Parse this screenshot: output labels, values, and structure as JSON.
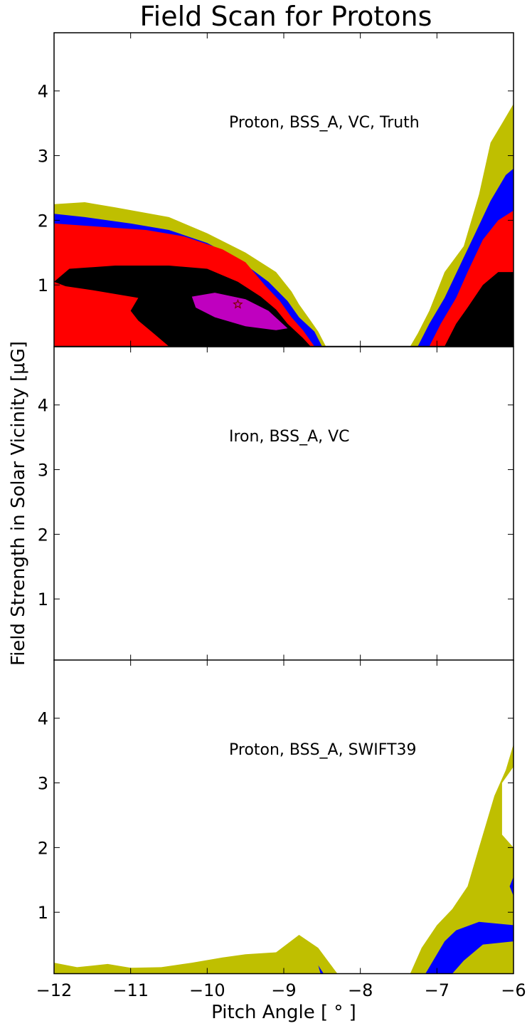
{
  "chart_data": {
    "type": "contour",
    "title": "Field Scan for Protons",
    "xlabel": "Pitch Angle [$^\\circ$]",
    "ylabel": "Field Strength in Solar Vicinity [$\\mu$G]",
    "xlabel_text": "Pitch Angle [ ° ]",
    "ylabel_text": "Field Strength in Solar Vicinity [μG]",
    "xlim": [
      -12,
      -6
    ],
    "ylim": [
      0.05,
      4.9
    ],
    "x_ticks": [
      -12,
      -11,
      -10,
      -9,
      -8,
      -7,
      -6
    ],
    "x_tick_labels": [
      "−12",
      "−11",
      "−10",
      "−9",
      "−8",
      "−7",
      "−6"
    ],
    "y_ticks": [
      1,
      2,
      3,
      4
    ],
    "y_tick_labels": [
      "1",
      "2",
      "3",
      "4"
    ],
    "grid": false,
    "level_colors": {
      "level_1": "#bfbf00",
      "level_2": "#0000ff",
      "level_3": "#ff0000",
      "level_4": "#000000",
      "level_5": "#bf00bf"
    },
    "panels": [
      {
        "label": "Proton, BSS_A, VC, Truth",
        "regions": [
          {
            "level": "level_1",
            "points": [
              [
                -12,
                0.05
              ],
              [
                -12,
                2.25
              ],
              [
                -11.6,
                2.28
              ],
              [
                -11.2,
                2.2
              ],
              [
                -10.5,
                2.05
              ],
              [
                -10.0,
                1.8
              ],
              [
                -9.5,
                1.5
              ],
              [
                -9.1,
                1.2
              ],
              [
                -8.9,
                0.9
              ],
              [
                -8.8,
                0.7
              ],
              [
                -8.65,
                0.45
              ],
              [
                -8.55,
                0.28
              ],
              [
                -8.45,
                0.05
              ]
            ]
          },
          {
            "level": "level_2",
            "points": [
              [
                -12,
                0.05
              ],
              [
                -12,
                2.1
              ],
              [
                -11.6,
                2.05
              ],
              [
                -11.0,
                1.95
              ],
              [
                -10.5,
                1.85
              ],
              [
                -10.0,
                1.65
              ],
              [
                -9.6,
                1.4
              ],
              [
                -9.2,
                1.05
              ],
              [
                -8.95,
                0.75
              ],
              [
                -8.8,
                0.5
              ],
              [
                -8.6,
                0.28
              ],
              [
                -8.5,
                0.05
              ]
            ]
          },
          {
            "level": "level_3",
            "points": [
              [
                -12,
                0.05
              ],
              [
                -12,
                1.95
              ],
              [
                -11.4,
                1.9
              ],
              [
                -10.8,
                1.85
              ],
              [
                -10.3,
                1.75
              ],
              [
                -9.8,
                1.55
              ],
              [
                -9.5,
                1.35
              ],
              [
                -9.25,
                1.0
              ],
              [
                -9.05,
                0.75
              ],
              [
                -8.9,
                0.5
              ],
              [
                -8.75,
                0.3
              ],
              [
                -8.6,
                0.05
              ]
            ]
          },
          {
            "level": "level_4",
            "points": [
              [
                -12,
                1.05
              ],
              [
                -11.8,
                1.25
              ],
              [
                -11.2,
                1.3
              ],
              [
                -10.5,
                1.3
              ],
              [
                -10.0,
                1.25
              ],
              [
                -9.6,
                1.05
              ],
              [
                -9.3,
                0.82
              ],
              [
                -9.1,
                0.62
              ],
              [
                -8.95,
                0.4
              ],
              [
                -8.75,
                0.18
              ],
              [
                -8.65,
                0.05
              ],
              [
                -10.5,
                0.05
              ],
              [
                -10.7,
                0.25
              ],
              [
                -10.9,
                0.45
              ],
              [
                -11.0,
                0.6
              ],
              [
                -10.9,
                0.8
              ],
              [
                -11.5,
                0.92
              ],
              [
                -11.85,
                0.98
              ]
            ]
          },
          {
            "level": "level_5",
            "points": [
              [
                -10.2,
                0.82
              ],
              [
                -9.9,
                0.88
              ],
              [
                -9.5,
                0.78
              ],
              [
                -9.2,
                0.6
              ],
              [
                -8.95,
                0.33
              ],
              [
                -9.1,
                0.3
              ],
              [
                -9.5,
                0.36
              ],
              [
                -9.9,
                0.5
              ],
              [
                -10.15,
                0.65
              ]
            ]
          },
          {
            "level": "level_1",
            "points": [
              [
                -7.35,
                0.05
              ],
              [
                -7.25,
                0.25
              ],
              [
                -7.1,
                0.6
              ],
              [
                -6.9,
                1.2
              ],
              [
                -6.65,
                1.6
              ],
              [
                -6.45,
                2.4
              ],
              [
                -6.3,
                3.2
              ],
              [
                -6.15,
                3.5
              ],
              [
                -6.0,
                3.8
              ],
              [
                -6,
                4.4
              ],
              [
                -6,
                0.05
              ]
            ]
          },
          {
            "level": "level_2",
            "points": [
              [
                -7.25,
                0.05
              ],
              [
                -7.1,
                0.4
              ],
              [
                -6.9,
                0.8
              ],
              [
                -6.7,
                1.3
              ],
              [
                -6.5,
                1.8
              ],
              [
                -6.3,
                2.3
              ],
              [
                -6.1,
                2.7
              ],
              [
                -6,
                2.8
              ],
              [
                -6,
                0.05
              ]
            ]
          },
          {
            "level": "level_3",
            "points": [
              [
                -7.1,
                0.05
              ],
              [
                -6.95,
                0.4
              ],
              [
                -6.75,
                0.8
              ],
              [
                -6.6,
                1.2
              ],
              [
                -6.4,
                1.7
              ],
              [
                -6.2,
                2.0
              ],
              [
                -6,
                2.15
              ],
              [
                -6,
                0.05
              ]
            ]
          },
          {
            "level": "level_4",
            "points": [
              [
                -6.9,
                0.05
              ],
              [
                -6.75,
                0.4
              ],
              [
                -6.6,
                0.65
              ],
              [
                -6.4,
                1.0
              ],
              [
                -6.2,
                1.2
              ],
              [
                -6,
                1.2
              ],
              [
                -6,
                0.05
              ]
            ]
          }
        ],
        "markers": [
          {
            "x": -9.6,
            "y": 0.7,
            "symbol": "star"
          }
        ]
      },
      {
        "label": "Iron, BSS_A, VC",
        "regions": [],
        "markers": []
      },
      {
        "label": "Proton, BSS_A, SWIFT39",
        "regions": [
          {
            "level": "level_1",
            "points": [
              [
                -12,
                0.05
              ],
              [
                -12,
                0.22
              ],
              [
                -11.7,
                0.15
              ],
              [
                -11.3,
                0.2
              ],
              [
                -11.0,
                0.14
              ],
              [
                -10.6,
                0.15
              ],
              [
                -10.2,
                0.22
              ],
              [
                -9.8,
                0.3
              ],
              [
                -9.5,
                0.35
              ],
              [
                -9.1,
                0.38
              ],
              [
                -8.8,
                0.65
              ],
              [
                -8.55,
                0.45
              ],
              [
                -8.3,
                0.05
              ]
            ]
          },
          {
            "level": "level_1",
            "points": [
              [
                -7.35,
                0.05
              ],
              [
                -7.2,
                0.45
              ],
              [
                -7.0,
                0.8
              ],
              [
                -6.8,
                1.05
              ],
              [
                -6.6,
                1.4
              ],
              [
                -6.45,
                2.0
              ],
              [
                -6.35,
                2.4
              ],
              [
                -6.25,
                2.8
              ],
              [
                -6.1,
                3.2
              ],
              [
                -6.0,
                3.6
              ],
              [
                -6,
                4.2
              ],
              [
                -6,
                3.25
              ],
              [
                -6.15,
                3.0
              ],
              [
                -6.15,
                2.2
              ],
              [
                -6,
                2.0
              ],
              [
                -6,
                0.05
              ]
            ]
          },
          {
            "level": "level_2",
            "points": [
              [
                -7.15,
                0.05
              ],
              [
                -7.05,
                0.25
              ],
              [
                -6.9,
                0.55
              ],
              [
                -6.75,
                0.72
              ],
              [
                -6.45,
                0.85
              ],
              [
                -6,
                0.8
              ],
              [
                -6,
                0.55
              ],
              [
                -6.4,
                0.5
              ],
              [
                -6.65,
                0.25
              ],
              [
                -6.8,
                0.05
              ]
            ]
          },
          {
            "level": "level_2",
            "points": [
              [
                -6,
                1.25
              ],
              [
                -6.05,
                1.4
              ],
              [
                -6,
                1.55
              ]
            ]
          },
          {
            "level": "level_2",
            "points": [
              [
                -8.52,
                0.05
              ],
              [
                -8.55,
                0.18
              ],
              [
                -8.48,
                0.05
              ]
            ]
          }
        ],
        "markers": []
      }
    ]
  }
}
